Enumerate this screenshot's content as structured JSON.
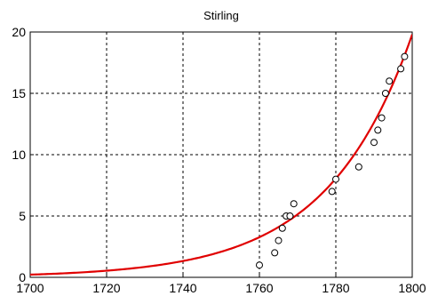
{
  "chart_data": {
    "type": "scatter",
    "title": "Stirling",
    "xlabel": "",
    "ylabel": "",
    "xlim": [
      1700,
      1800
    ],
    "ylim": [
      0,
      20
    ],
    "x_ticks": [
      1700,
      1720,
      1740,
      1760,
      1780,
      1800
    ],
    "y_ticks": [
      0,
      5,
      10,
      15,
      20
    ],
    "grid": true,
    "grid_style": "dashed",
    "points": {
      "x": [
        1760,
        1764,
        1765,
        1766,
        1767,
        1768,
        1769,
        1779,
        1780,
        1786,
        1790,
        1791,
        1792,
        1793,
        1794,
        1797,
        1798
      ],
      "y": [
        1,
        2,
        3,
        4,
        5,
        5,
        6,
        7,
        8,
        9,
        11,
        12,
        13,
        15,
        16,
        17,
        18
      ],
      "marker": "open-circle",
      "color": "#000000"
    },
    "fit_curve": {
      "model": "exponential",
      "a": 0.22,
      "b": 0.045,
      "x0": 1700,
      "color": "#e00000"
    }
  }
}
